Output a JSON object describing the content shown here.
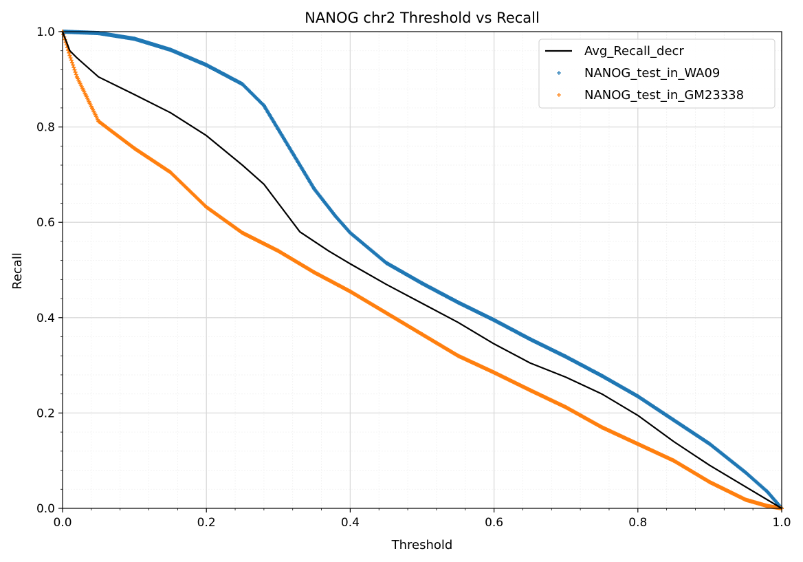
{
  "chart_data": {
    "type": "scatter",
    "title": "NANOG chr2 Threshold vs Recall",
    "xlabel": "Threshold",
    "ylabel": "Recall",
    "xlim": [
      0.0,
      1.0
    ],
    "ylim": [
      0.0,
      1.0
    ],
    "xticks": [
      "0.0",
      "0.2",
      "0.4",
      "0.6",
      "0.8",
      "1.0"
    ],
    "yticks": [
      "0.0",
      "0.2",
      "0.4",
      "0.6",
      "0.8",
      "1.0"
    ],
    "grid": "major and minor",
    "legend_position": "top-right",
    "series": [
      {
        "name": "Avg_Recall_decr",
        "kind": "line",
        "color": "#000000",
        "points": [
          [
            0.0,
            1.0
          ],
          [
            0.01,
            0.96
          ],
          [
            0.02,
            0.945
          ],
          [
            0.05,
            0.905
          ],
          [
            0.1,
            0.868
          ],
          [
            0.15,
            0.83
          ],
          [
            0.2,
            0.782
          ],
          [
            0.25,
            0.72
          ],
          [
            0.28,
            0.68
          ],
          [
            0.3,
            0.64
          ],
          [
            0.33,
            0.58
          ],
          [
            0.37,
            0.54
          ],
          [
            0.4,
            0.513
          ],
          [
            0.45,
            0.47
          ],
          [
            0.5,
            0.43
          ],
          [
            0.55,
            0.39
          ],
          [
            0.6,
            0.345
          ],
          [
            0.65,
            0.305
          ],
          [
            0.7,
            0.275
          ],
          [
            0.75,
            0.24
          ],
          [
            0.8,
            0.195
          ],
          [
            0.85,
            0.14
          ],
          [
            0.9,
            0.09
          ],
          [
            0.95,
            0.045
          ],
          [
            1.0,
            0.0
          ]
        ]
      },
      {
        "name": "NANOG_test_in_WA09",
        "kind": "scatter",
        "marker": "+",
        "color": "#1f77b4",
        "points": [
          [
            0.0,
            1.0
          ],
          [
            0.05,
            0.997
          ],
          [
            0.1,
            0.985
          ],
          [
            0.15,
            0.962
          ],
          [
            0.2,
            0.93
          ],
          [
            0.25,
            0.89
          ],
          [
            0.28,
            0.845
          ],
          [
            0.3,
            0.795
          ],
          [
            0.32,
            0.745
          ],
          [
            0.35,
            0.67
          ],
          [
            0.38,
            0.612
          ],
          [
            0.4,
            0.578
          ],
          [
            0.45,
            0.515
          ],
          [
            0.5,
            0.472
          ],
          [
            0.55,
            0.432
          ],
          [
            0.6,
            0.395
          ],
          [
            0.65,
            0.355
          ],
          [
            0.7,
            0.318
          ],
          [
            0.75,
            0.278
          ],
          [
            0.8,
            0.235
          ],
          [
            0.85,
            0.185
          ],
          [
            0.9,
            0.135
          ],
          [
            0.95,
            0.075
          ],
          [
            0.98,
            0.035
          ],
          [
            1.0,
            0.0
          ]
        ]
      },
      {
        "name": "NANOG_test_in_GM23338",
        "kind": "scatter",
        "marker": "+",
        "color": "#ff7f0e",
        "points": [
          [
            0.0,
            1.0
          ],
          [
            0.01,
            0.95
          ],
          [
            0.02,
            0.905
          ],
          [
            0.05,
            0.812
          ],
          [
            0.1,
            0.755
          ],
          [
            0.15,
            0.705
          ],
          [
            0.2,
            0.632
          ],
          [
            0.25,
            0.578
          ],
          [
            0.3,
            0.54
          ],
          [
            0.35,
            0.495
          ],
          [
            0.4,
            0.455
          ],
          [
            0.45,
            0.41
          ],
          [
            0.5,
            0.365
          ],
          [
            0.55,
            0.32
          ],
          [
            0.6,
            0.285
          ],
          [
            0.65,
            0.248
          ],
          [
            0.7,
            0.212
          ],
          [
            0.75,
            0.17
          ],
          [
            0.8,
            0.135
          ],
          [
            0.85,
            0.1
          ],
          [
            0.9,
            0.055
          ],
          [
            0.95,
            0.018
          ],
          [
            0.98,
            0.005
          ],
          [
            1.0,
            0.0
          ]
        ]
      }
    ]
  }
}
